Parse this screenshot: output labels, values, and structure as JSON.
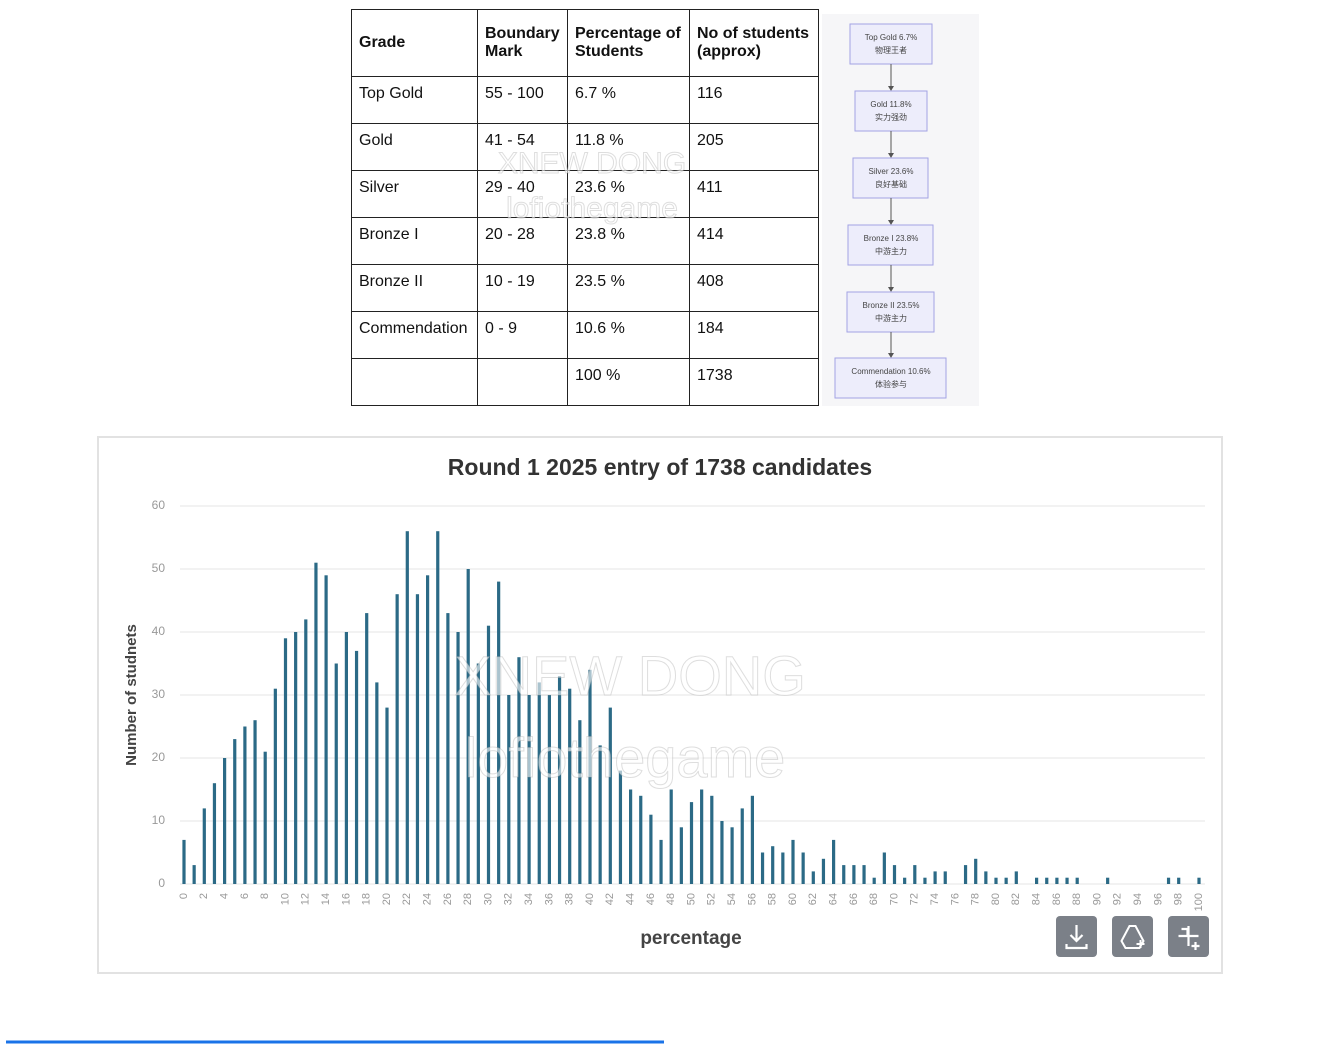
{
  "table": {
    "header": [
      "Grade",
      "Boundary Mark",
      "Percentage of Students",
      "No of students (approx)"
    ],
    "rows": [
      [
        "Top Gold",
        "55 - 100",
        "6.7 %",
        "116"
      ],
      [
        "Gold",
        "41 - 54",
        "11.8 %",
        "205"
      ],
      [
        "Silver",
        "29 - 40",
        "23.6 %",
        "411"
      ],
      [
        "Bronze I",
        "20 - 28",
        "23.8 %",
        "414"
      ],
      [
        "Bronze II",
        "10 - 19",
        "23.5 %",
        "408"
      ],
      [
        "Commendation",
        "0 - 9",
        "10.6 %",
        "184"
      ],
      [
        null,
        null,
        "100 %",
        "1738"
      ]
    ]
  },
  "diagram": {
    "nodes": [
      {
        "label": "Top Gold 6.7%",
        "sub": "物理王者"
      },
      {
        "label": "Gold 11.8%",
        "sub": "实力强劲"
      },
      {
        "label": "Silver 23.6%",
        "sub": "良好基础"
      },
      {
        "label": "Bronze I 23.8%",
        "sub": "中游主力"
      },
      {
        "label": "Bronze II 23.5%",
        "sub": "中游主力"
      },
      {
        "label": "Commendation 10.6%",
        "sub": "体验参与"
      }
    ]
  },
  "watermark": [
    "XNEW DONG",
    "lofiothegame"
  ],
  "chart_data": {
    "type": "bar",
    "title": "Round 1 2025 entry of 1738 candidates",
    "x_label": "percentage",
    "y_label": "Number of studnets",
    "color": "#2b6a86",
    "grid": true,
    "categories": [
      0,
      null,
      2,
      null,
      4,
      null,
      6,
      null,
      8,
      null,
      10,
      null,
      12,
      null,
      14,
      null,
      16,
      null,
      18,
      null,
      20,
      null,
      22,
      null,
      24,
      null,
      26,
      null,
      28,
      null,
      30,
      null,
      32,
      null,
      34,
      null,
      36,
      null,
      38,
      null,
      40,
      null,
      42,
      null,
      44,
      null,
      46,
      null,
      48,
      null,
      50,
      null,
      52,
      null,
      54,
      null,
      56,
      null,
      58,
      null,
      60,
      null,
      62,
      null,
      64,
      null,
      66,
      null,
      68,
      null,
      70,
      null,
      72,
      null,
      74,
      null,
      76,
      null,
      78,
      null,
      80,
      null,
      82,
      null,
      84,
      null,
      86,
      null,
      88,
      null,
      90,
      null,
      92,
      null,
      94,
      null,
      96,
      null,
      98,
      null,
      100
    ],
    "values": [
      7,
      3,
      12,
      16,
      20,
      23,
      25,
      26,
      21,
      31,
      39,
      40,
      42,
      51,
      49,
      35,
      40,
      37,
      43,
      32,
      28,
      46,
      56,
      46,
      49,
      56,
      43,
      40,
      50,
      35,
      41,
      48,
      30,
      36,
      30,
      32,
      30,
      33,
      31,
      26,
      34,
      22,
      28,
      18,
      15,
      14,
      11,
      7,
      15,
      9,
      13,
      15,
      14,
      10,
      9,
      12,
      14,
      5,
      6,
      5,
      7,
      5,
      2,
      4,
      7,
      3,
      3,
      3,
      1,
      5,
      3,
      1,
      3,
      1,
      2,
      2,
      0,
      3,
      4,
      2,
      1,
      1,
      2,
      0,
      1,
      1,
      1,
      1,
      1,
      0,
      0,
      1,
      0,
      0,
      0,
      0,
      0,
      1,
      1,
      0,
      1
    ],
    "ylim": [
      0,
      60
    ],
    "yticks": [
      0,
      10,
      20,
      30,
      40,
      50,
      60
    ]
  }
}
